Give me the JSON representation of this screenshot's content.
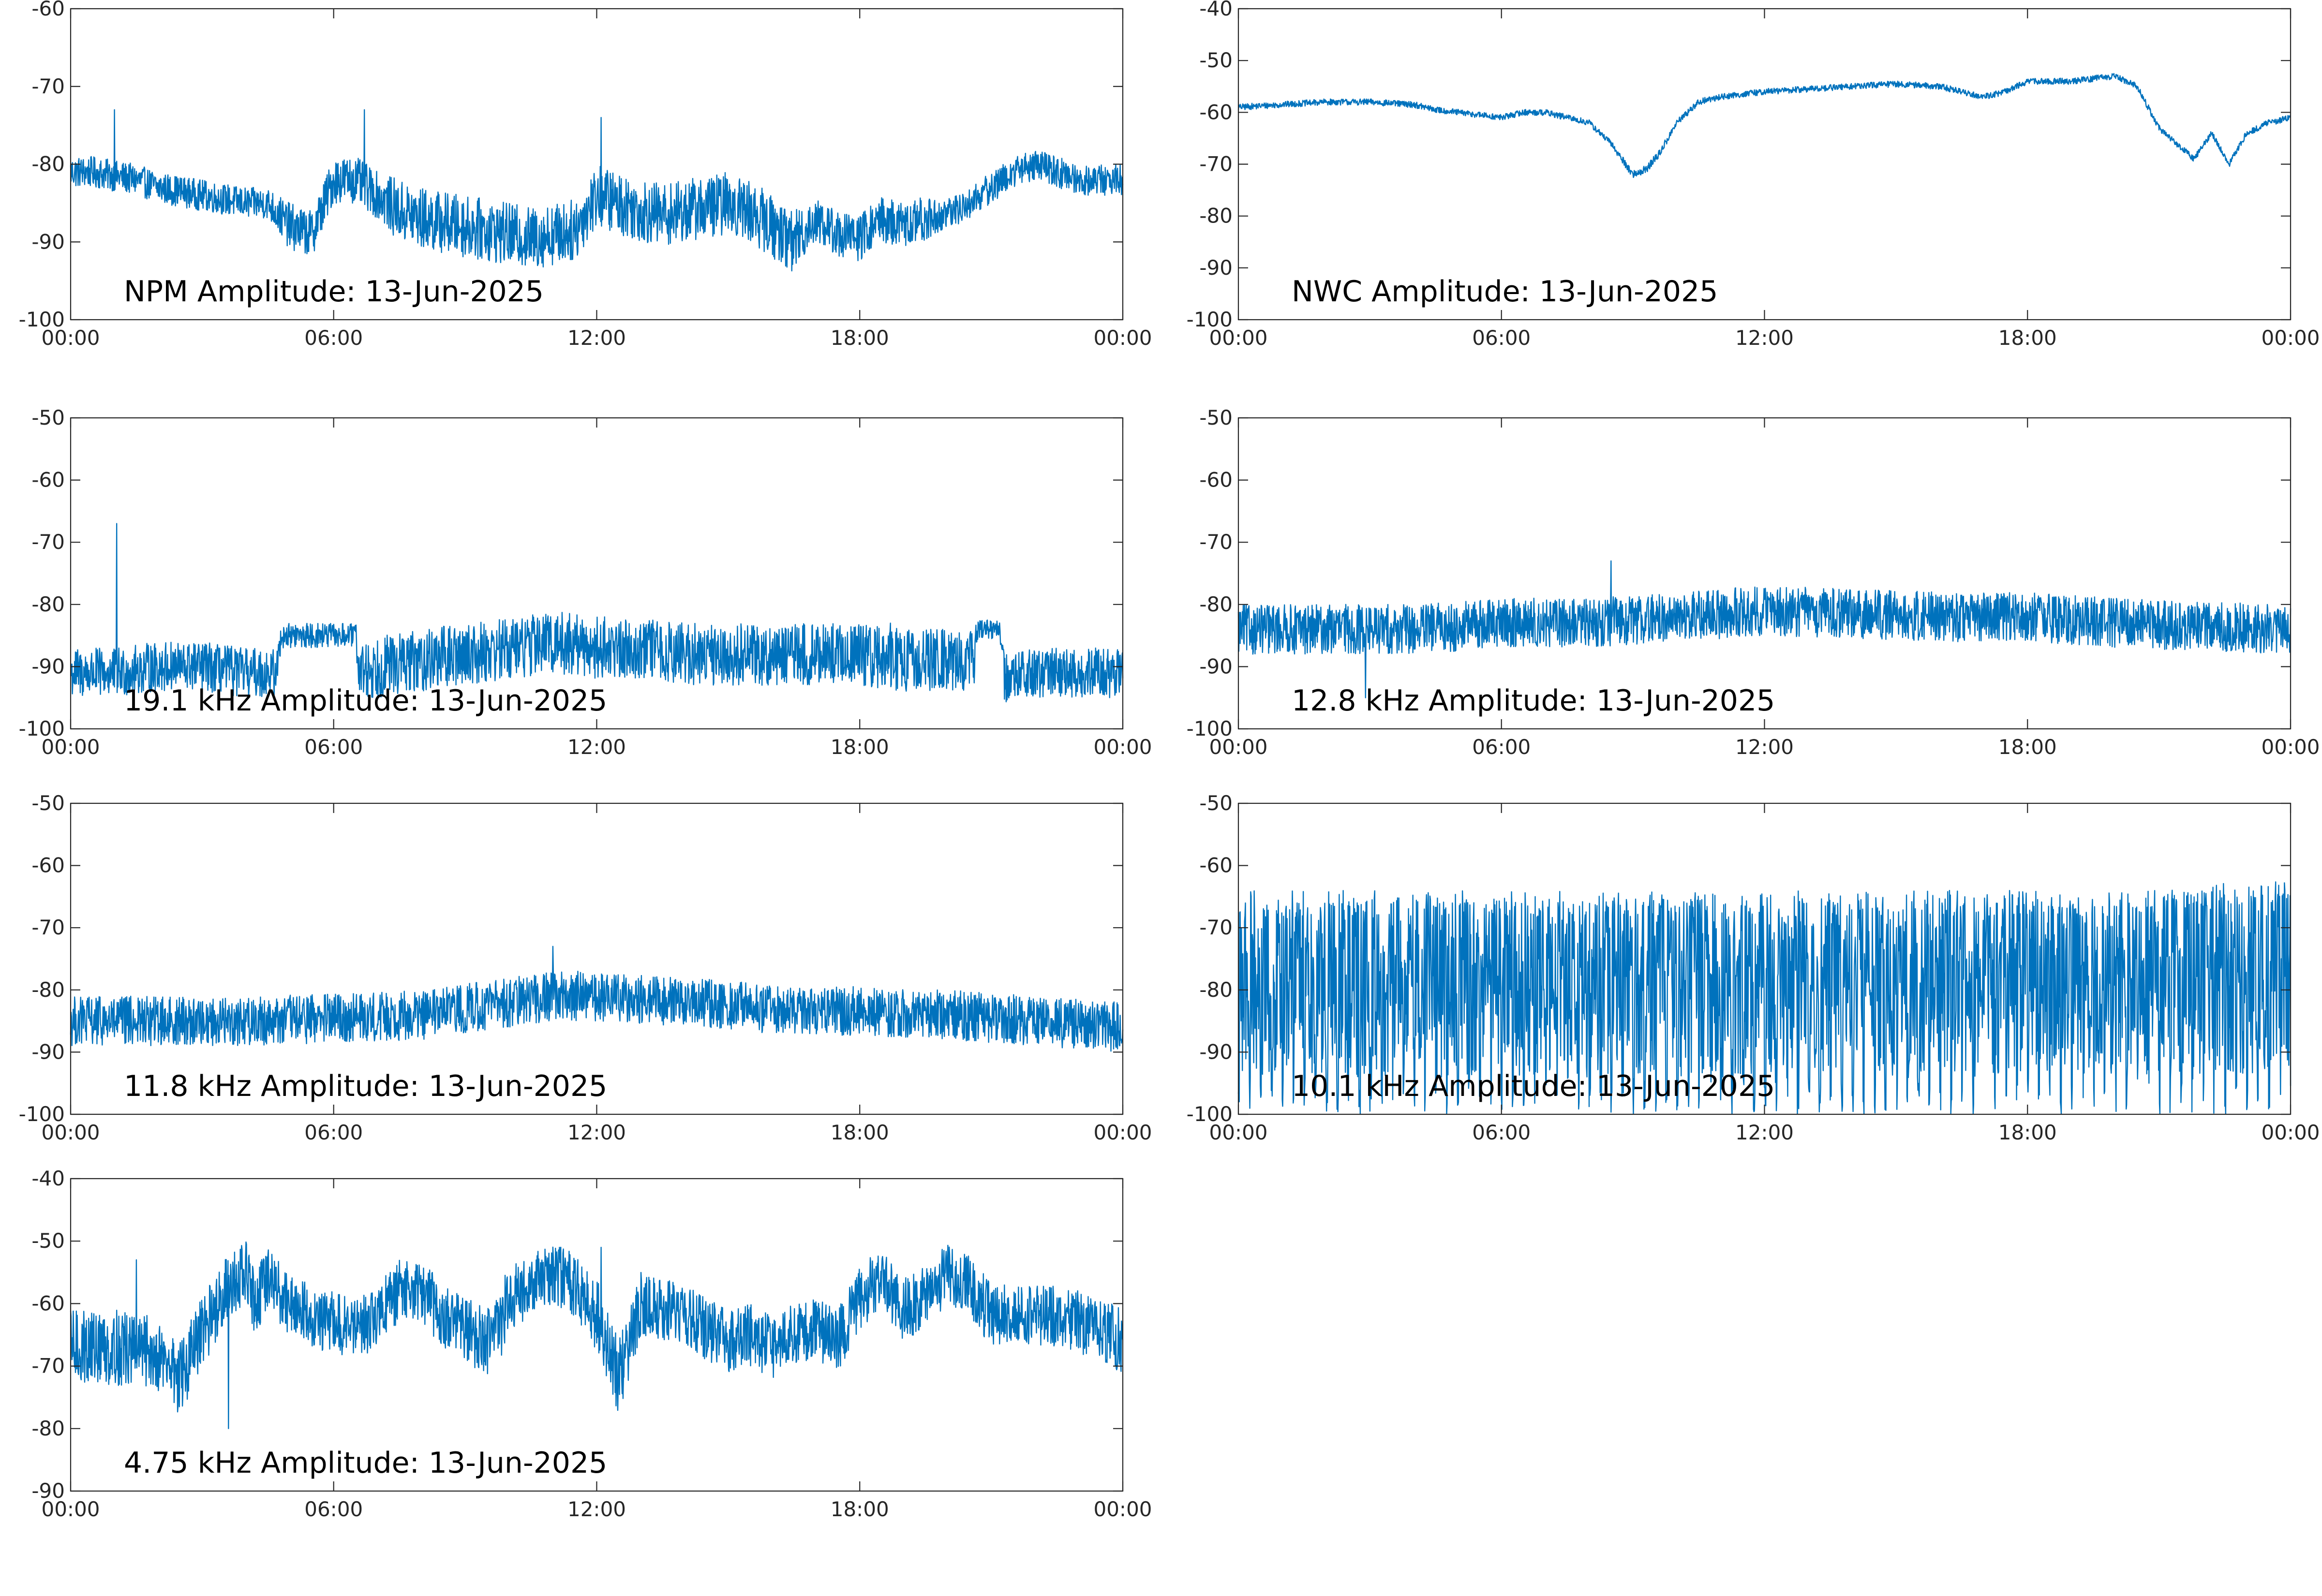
{
  "figure": {
    "background": "#ffffff",
    "trace_color": "#0072BD"
  },
  "chart_data": [
    {
      "type": "line",
      "title": "NPM Amplitude: 13-Jun-2025",
      "xlabel": "",
      "ylabel": "",
      "x_ticks": [
        "00:00",
        "06:00",
        "12:00",
        "18:00",
        "00:00"
      ],
      "xlim_hours": [
        0,
        24
      ],
      "ylim": [
        -100,
        -60
      ],
      "y_ticks": [
        -60,
        -70,
        -80,
        -90,
        -100
      ],
      "grid": false,
      "series": [
        {
          "x_hours": [
            0,
            0.5,
            1,
            1.5,
            2,
            2.5,
            3,
            3.5,
            4,
            4.5,
            5,
            5.5,
            6,
            6.5,
            7,
            7.5,
            8,
            8.5,
            9,
            9.5,
            10,
            10.5,
            11,
            11.5,
            12,
            12.5,
            13,
            13.5,
            14,
            14.5,
            15,
            15.5,
            16,
            16.5,
            17,
            17.5,
            18,
            18.5,
            19,
            19.5,
            20,
            20.5,
            21,
            21.5,
            22,
            22.5,
            23,
            23.5,
            24
          ],
          "values": [
            -81,
            -81,
            -81.5,
            -82,
            -83,
            -83.5,
            -84,
            -84.5,
            -85,
            -85,
            -88,
            -89,
            -82,
            -82,
            -84,
            -86,
            -87,
            -87.5,
            -88,
            -88.5,
            -89,
            -89.5,
            -89,
            -88.5,
            -84,
            -85,
            -86,
            -86.5,
            -86,
            -85.5,
            -85,
            -86,
            -88,
            -90,
            -87,
            -89,
            -89.5,
            -87,
            -88,
            -87,
            -86.5,
            -85,
            -83,
            -81,
            -80,
            -81,
            -82,
            -82,
            -82
          ],
          "spread": [
            2,
            2,
            2,
            2,
            2,
            2,
            2,
            2,
            2,
            2,
            3,
            3,
            3,
            3,
            3,
            4,
            4,
            4,
            4,
            4,
            4,
            4,
            4,
            4,
            4,
            4,
            4,
            4,
            4,
            4,
            4,
            4,
            4,
            4,
            3,
            3,
            3,
            3,
            3,
            3,
            2,
            2,
            2,
            2,
            2,
            2,
            2,
            2,
            2
          ],
          "spikes": [
            {
              "x": 1.0,
              "value": -73
            },
            {
              "x": 6.7,
              "value": -73
            },
            {
              "x": 12.1,
              "value": -74
            }
          ]
        }
      ]
    },
    {
      "type": "line",
      "title": "NWC Amplitude: 13-Jun-2025",
      "xlabel": "",
      "ylabel": "",
      "x_ticks": [
        "00:00",
        "06:00",
        "12:00",
        "18:00",
        "00:00"
      ],
      "xlim_hours": [
        0,
        24
      ],
      "ylim": [
        -100,
        -40
      ],
      "y_ticks": [
        -40,
        -50,
        -60,
        -70,
        -80,
        -90,
        -100
      ],
      "grid": false,
      "series": [
        {
          "x_hours": [
            0,
            1,
            2,
            3,
            4,
            4.5,
            5,
            5.5,
            6,
            6.5,
            7,
            7.5,
            8,
            8.5,
            9,
            9.3,
            9.6,
            10,
            10.5,
            11,
            11.5,
            12,
            13,
            14,
            15,
            16,
            16.5,
            17,
            17.5,
            18,
            19,
            19.5,
            20,
            20.5,
            21,
            21.4,
            21.8,
            22.2,
            22.6,
            23,
            23.5,
            24
          ],
          "values": [
            -59,
            -58.5,
            -58,
            -58,
            -58.5,
            -59.5,
            -60,
            -60.5,
            -61,
            -60,
            -60,
            -61,
            -62,
            -66,
            -72,
            -71,
            -68,
            -62,
            -58,
            -57,
            -56.5,
            -56,
            -55.5,
            -55,
            -54.5,
            -55,
            -56,
            -57,
            -56,
            -54,
            -54,
            -53.5,
            -53,
            -55,
            -63,
            -66,
            -69,
            -64,
            -70,
            -64,
            -62,
            -61
          ],
          "spread": [
            0.6,
            0.6,
            0.6,
            0.6,
            0.6,
            0.6,
            0.6,
            0.6,
            0.6,
            0.6,
            0.6,
            0.6,
            0.6,
            0.6,
            0.8,
            0.8,
            0.8,
            0.6,
            0.6,
            0.6,
            0.6,
            0.6,
            0.6,
            0.6,
            0.6,
            0.6,
            0.6,
            0.6,
            0.6,
            0.6,
            0.6,
            0.6,
            0.6,
            0.6,
            0.6,
            0.6,
            0.6,
            0.6,
            0.6,
            0.6,
            0.6,
            0.6
          ],
          "spikes": []
        }
      ]
    },
    {
      "type": "line",
      "title": "19.1 kHz Amplitude: 13-Jun-2025",
      "xlabel": "",
      "ylabel": "",
      "x_ticks": [
        "00:00",
        "06:00",
        "12:00",
        "18:00",
        "00:00"
      ],
      "xlim_hours": [
        0,
        24
      ],
      "ylim": [
        -100,
        -50
      ],
      "y_ticks": [
        -50,
        -60,
        -70,
        -80,
        -90,
        -100
      ],
      "grid": false,
      "series": [
        {
          "x_hours": [
            0,
            1,
            2,
            3,
            4,
            4.7,
            4.8,
            5,
            6,
            6.5,
            6.6,
            7,
            8,
            9,
            10,
            11,
            12,
            13,
            14,
            15,
            16,
            17,
            18,
            19,
            20,
            20.6,
            20.7,
            21,
            21.2,
            21.3,
            22,
            23,
            24
          ],
          "values": [
            -91,
            -91,
            -90,
            -90,
            -91,
            -91,
            -85,
            -85,
            -85,
            -85,
            -91,
            -90,
            -89,
            -88,
            -87,
            -86,
            -87,
            -87,
            -88,
            -88,
            -88,
            -88,
            -88,
            -89,
            -89,
            -89,
            -84,
            -84,
            -84,
            -92,
            -91,
            -91,
            -91
          ],
          "spread": [
            4,
            4,
            4,
            4,
            4,
            4,
            2,
            2,
            2,
            2,
            5,
            5,
            5,
            5,
            5,
            5,
            5,
            5,
            5,
            5,
            5,
            5,
            5,
            5,
            5,
            5,
            1.5,
            1.5,
            1.5,
            4,
            4,
            4,
            4
          ],
          "spikes": [
            {
              "x": 1.05,
              "value": -67
            },
            {
              "x": 18.7,
              "value": -83
            }
          ]
        }
      ]
    },
    {
      "type": "line",
      "title": "12.8 kHz Amplitude: 13-Jun-2025",
      "xlabel": "",
      "ylabel": "",
      "x_ticks": [
        "00:00",
        "06:00",
        "12:00",
        "18:00",
        "00:00"
      ],
      "xlim_hours": [
        0,
        24
      ],
      "ylim": [
        -100,
        -50
      ],
      "y_ticks": [
        -50,
        -60,
        -70,
        -80,
        -90,
        -100
      ],
      "grid": false,
      "series": [
        {
          "x_hours": [
            0,
            2,
            4,
            6,
            8,
            10,
            12,
            14,
            16,
            18,
            20,
            22,
            24
          ],
          "values": [
            -84,
            -84,
            -84,
            -83,
            -83,
            -82,
            -81,
            -81.5,
            -82,
            -82,
            -83,
            -83.5,
            -84
          ],
          "spread": [
            4,
            4,
            4,
            4,
            4,
            4,
            4,
            4,
            4,
            4,
            4,
            4,
            4
          ],
          "spikes": [
            {
              "x": 8.5,
              "value": -73
            },
            {
              "x": 2.9,
              "value": -95
            }
          ]
        }
      ]
    },
    {
      "type": "line",
      "title": "11.8 kHz Amplitude: 13-Jun-2025",
      "xlabel": "",
      "ylabel": "",
      "x_ticks": [
        "00:00",
        "06:00",
        "12:00",
        "18:00",
        "00:00"
      ],
      "xlim_hours": [
        0,
        24
      ],
      "ylim": [
        -100,
        -50
      ],
      "y_ticks": [
        -50,
        -60,
        -70,
        -80,
        -90,
        -100
      ],
      "grid": false,
      "series": [
        {
          "x_hours": [
            0,
            2,
            4,
            6,
            8,
            10,
            11,
            12,
            14,
            16,
            18,
            20,
            22,
            24
          ],
          "values": [
            -85,
            -85,
            -85,
            -84.5,
            -84,
            -82,
            -81,
            -81,
            -82,
            -83,
            -83.5,
            -84,
            -85,
            -86
          ],
          "spread": [
            4,
            4,
            4,
            4,
            4,
            4,
            4,
            4,
            4,
            4,
            4,
            4,
            4,
            4
          ],
          "spikes": [
            {
              "x": 11.0,
              "value": -73
            }
          ]
        }
      ]
    },
    {
      "type": "line",
      "title": "10.1 kHz Amplitude: 13-Jun-2025",
      "xlabel": "",
      "ylabel": "",
      "x_ticks": [
        "00:00",
        "06:00",
        "12:00",
        "18:00",
        "00:00"
      ],
      "xlim_hours": [
        0,
        24
      ],
      "ylim": [
        -100,
        -50
      ],
      "y_ticks": [
        -50,
        -60,
        -70,
        -80,
        -90,
        -100
      ],
      "grid": false,
      "series": [
        {
          "x_hours": [
            0,
            2,
            4,
            6,
            8,
            10,
            12,
            14,
            16,
            18,
            20,
            22,
            24
          ],
          "values": [
            -80,
            -80,
            -80,
            -80,
            -80,
            -80,
            -80,
            -80,
            -80,
            -80,
            -80,
            -79,
            -78
          ],
          "spread": [
            14,
            14,
            14,
            14,
            14,
            14,
            14,
            14,
            14,
            14,
            14,
            15,
            15
          ],
          "spikes": [],
          "deep_dip_value": -100,
          "burst_period_hours": 0.25
        }
      ]
    },
    {
      "type": "line",
      "title": "4.75 kHz Amplitude: 13-Jun-2025",
      "xlabel": "",
      "ylabel": "",
      "x_ticks": [
        "00:00",
        "06:00",
        "12:00",
        "18:00",
        "00:00"
      ],
      "xlim_hours": [
        0,
        24
      ],
      "ylim": [
        -90,
        -40
      ],
      "y_ticks": [
        -40,
        -50,
        -60,
        -70,
        -80,
        -90
      ],
      "grid": false,
      "series": [
        {
          "x_hours": [
            0,
            1,
            2,
            2.5,
            3,
            3.5,
            4,
            4.2,
            4.5,
            5,
            5.5,
            6,
            6.5,
            7,
            7.5,
            8,
            8.5,
            9,
            9.5,
            10,
            10.5,
            11,
            11.5,
            12,
            12.5,
            13,
            13.5,
            14,
            14.5,
            15,
            15.5,
            16,
            16.5,
            17,
            17.5,
            18,
            18.5,
            19,
            19.5,
            20,
            20.5,
            21,
            21.5,
            22,
            22.5,
            23,
            23.5,
            24
          ],
          "values": [
            -67,
            -67,
            -68,
            -72,
            -65,
            -58,
            -55,
            -60,
            -56,
            -60,
            -62,
            -63,
            -64,
            -62,
            -58,
            -58,
            -62,
            -64,
            -67,
            -60,
            -57,
            -55,
            -57,
            -62,
            -72,
            -60,
            -61,
            -62,
            -64,
            -66,
            -65,
            -67,
            -65,
            -64,
            -66,
            -59,
            -56,
            -61,
            -59,
            -55,
            -57,
            -62,
            -61,
            -62,
            -62,
            -63,
            -64,
            -66
          ],
          "spread": [
            6,
            6,
            6,
            6,
            6,
            5,
            5,
            5,
            5,
            5,
            5,
            5,
            5,
            5,
            5,
            5,
            5,
            5,
            6,
            6,
            5,
            5,
            5,
            6,
            6,
            5,
            5,
            5,
            5,
            5,
            5,
            5,
            5,
            5,
            5,
            5,
            5,
            5,
            5,
            5,
            5,
            5,
            5,
            5,
            5,
            5,
            5,
            6
          ],
          "spikes": [
            {
              "x": 1.5,
              "value": -53
            },
            {
              "x": 12.1,
              "value": -51
            },
            {
              "x": 3.6,
              "value": -80
            }
          ]
        }
      ]
    }
  ]
}
